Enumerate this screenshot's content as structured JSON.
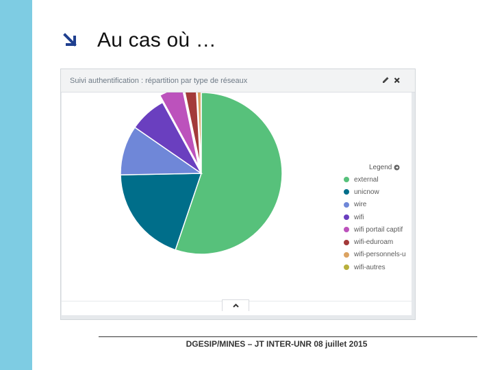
{
  "slide": {
    "title": "Au cas où …",
    "footer": "DGESIP/MINES – JT INTER-UNR 08 juillet 2015",
    "colors": {
      "side_band": "#7ecce3",
      "arrow": "#1f3f8f"
    },
    "icons": {
      "title_bullet": "arrow-down-right-icon"
    }
  },
  "widget": {
    "title": "Suivi authentification : répartition par type de réseaux",
    "icons": [
      "pencil-icon",
      "close-icon",
      "chevron-up-icon"
    ],
    "legend": {
      "title": "Legend",
      "icon": "circle-arrow-icon",
      "items": [
        {
          "label": "external",
          "color": "#57c17b"
        },
        {
          "label": "unicnow",
          "color": "#006e8a"
        },
        {
          "label": "wire",
          "color": "#6f87d8"
        },
        {
          "label": "wifi",
          "color": "#6a3fbf"
        },
        {
          "label": "wifi portail captif",
          "color": "#bc52bc"
        },
        {
          "label": "wifi-eduroam",
          "color": "#a33a3a"
        },
        {
          "label": "wifi-personnels-u",
          "color": "#dba362"
        },
        {
          "label": "wifi-autres",
          "color": "#b8b03c"
        }
      ]
    }
  },
  "chart_data": {
    "type": "pie",
    "title": "Suivi authentification : répartition par type de réseaux",
    "labels": [
      "external",
      "unicnow",
      "wire",
      "wifi",
      "wifi portail captif",
      "wifi-eduroam",
      "wifi-personnels-u",
      "wifi-autres"
    ],
    "values": [
      58.9,
      20.8,
      10.6,
      7.9,
      0,
      0,
      0,
      0
    ],
    "exploded": [
      {
        "label": "wifi portail captif",
        "value": 5.0
      },
      {
        "label": "wifi-eduroam",
        "value": 2.6
      },
      {
        "label": "wifi-personnels-u",
        "value": 0.9
      }
    ],
    "note_values_percent_estimated": true,
    "legend": "right",
    "colors": [
      "#57c17b",
      "#006e8a",
      "#6f87d8",
      "#6a3fbf",
      "#bc52bc",
      "#a33a3a",
      "#dba362",
      "#b8b03c"
    ]
  }
}
